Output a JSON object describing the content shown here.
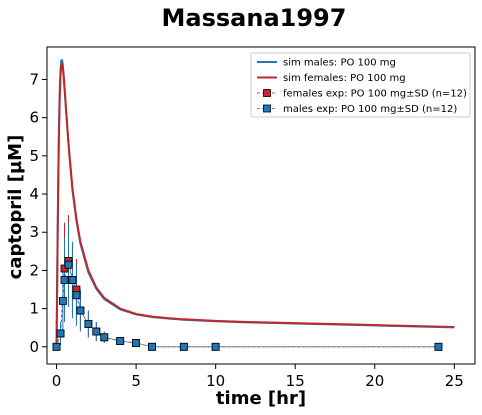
{
  "chart_data": {
    "type": "line",
    "title": "Massana1997",
    "xlabel": "time [hr]",
    "ylabel": "captopril [µM]",
    "xlim": [
      -0.6,
      26.3
    ],
    "ylim": [
      -0.45,
      7.85
    ],
    "xticks": [
      0,
      5,
      10,
      15,
      20,
      25
    ],
    "yticks": [
      0,
      1,
      2,
      3,
      4,
      5,
      6,
      7
    ],
    "grid": false,
    "legend_position": "top-right",
    "series": [
      {
        "name": "sim males: PO 100 mg",
        "kind": "line",
        "color": "#1f77b4",
        "x": [
          0,
          0.05,
          0.1,
          0.15,
          0.2,
          0.25,
          0.3,
          0.35,
          0.4,
          0.45,
          0.5,
          0.6,
          0.7,
          0.8,
          1,
          1.25,
          1.5,
          2,
          2.5,
          3,
          4,
          5,
          6,
          7,
          8,
          10,
          12,
          15,
          20,
          25
        ],
        "y": [
          0,
          2.2,
          4.2,
          5.7,
          6.7,
          7.25,
          7.5,
          7.5,
          7.35,
          7.1,
          6.8,
          6.2,
          5.6,
          5.05,
          4.1,
          3.3,
          2.7,
          1.95,
          1.52,
          1.25,
          0.98,
          0.85,
          0.78,
          0.74,
          0.71,
          0.67,
          0.64,
          0.61,
          0.56,
          0.51
        ]
      },
      {
        "name": "sim females: PO 100 mg",
        "kind": "line",
        "color": "#c0282e",
        "x": [
          0,
          0.05,
          0.1,
          0.15,
          0.2,
          0.25,
          0.3,
          0.35,
          0.4,
          0.45,
          0.5,
          0.6,
          0.7,
          0.8,
          1,
          1.25,
          1.5,
          2,
          2.5,
          3,
          4,
          5,
          6,
          7,
          8,
          10,
          12,
          15,
          20,
          25
        ],
        "y": [
          0,
          2.1,
          4.0,
          5.5,
          6.5,
          7.1,
          7.38,
          7.4,
          7.28,
          7.05,
          6.78,
          6.2,
          5.62,
          5.08,
          4.15,
          3.35,
          2.75,
          2.0,
          1.55,
          1.28,
          1.0,
          0.86,
          0.79,
          0.75,
          0.72,
          0.68,
          0.65,
          0.62,
          0.57,
          0.52
        ]
      },
      {
        "name": "females exp: PO 100 mg±SD (n=12)",
        "kind": "markers",
        "color": "#c0282e",
        "x": [
          0,
          0.25,
          0.5,
          0.75,
          1,
          1.25,
          1.5,
          2,
          2.5,
          3,
          4,
          5,
          6,
          8,
          10,
          24
        ],
        "y": [
          0,
          0.35,
          2.05,
          2.25,
          1.75,
          1.5,
          0.95,
          0.6,
          0.4,
          0.25,
          0.15,
          0.1,
          0,
          0,
          0,
          0
        ],
        "sd": [
          0,
          0.3,
          1.2,
          1.2,
          0.9,
          0.8,
          0.5,
          0.35,
          0.25,
          0.15,
          0.1,
          0.08,
          0,
          0,
          0,
          0
        ]
      },
      {
        "name": "males exp: PO 100 mg±SD (n=12)",
        "kind": "markers",
        "color": "#1f77b4",
        "x": [
          0,
          0.25,
          0.4,
          0.5,
          0.75,
          1,
          1.25,
          1.5,
          2,
          2.5,
          3,
          4,
          5,
          6,
          8,
          10,
          24
        ],
        "y": [
          0,
          0.35,
          1.2,
          1.75,
          2.15,
          1.75,
          1.35,
          0.95,
          0.6,
          0.4,
          0.25,
          0.15,
          0.1,
          0,
          0,
          0,
          0
        ],
        "sd": [
          0,
          0.3,
          0.8,
          1.1,
          1.1,
          1.0,
          0.8,
          0.55,
          0.35,
          0.25,
          0.15,
          0.1,
          0.08,
          0,
          0,
          0,
          0
        ]
      }
    ]
  }
}
